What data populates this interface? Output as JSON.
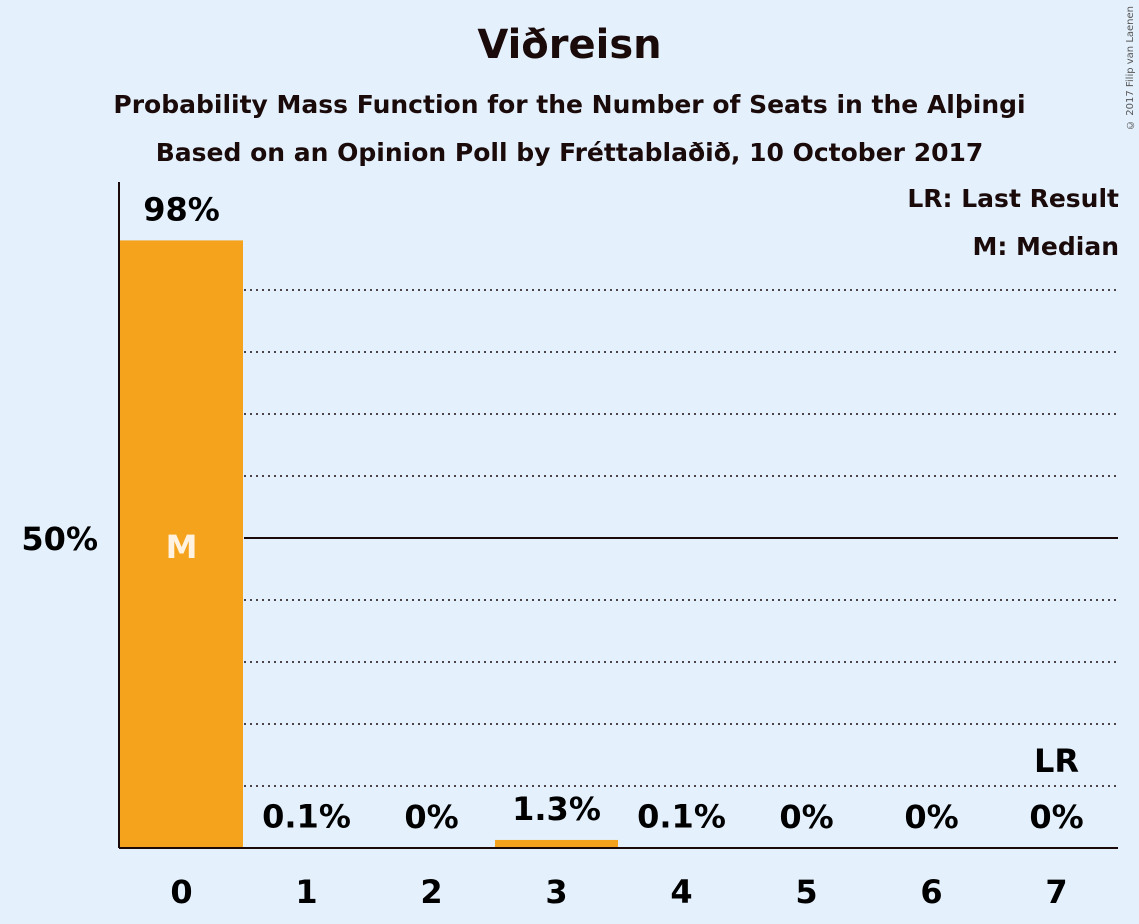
{
  "chart_data": {
    "type": "bar",
    "title": "Viðreisn",
    "subtitle": "Probability Mass Function for the Number of Seats in the Alþingi",
    "subtitle2": "Based on an Opinion Poll by Fréttablaðið, 10 October 2017",
    "copyright": "© 2017 Filip van Laenen",
    "categories": [
      "0",
      "1",
      "2",
      "3",
      "4",
      "5",
      "6",
      "7"
    ],
    "values": [
      98,
      0.1,
      0,
      1.3,
      0.1,
      0,
      0,
      0
    ],
    "value_labels": [
      "98%",
      "0.1%",
      "0%",
      "1.3%",
      "0.1%",
      "0%",
      "0%",
      "0%"
    ],
    "ylim": [
      0,
      100
    ],
    "y_tick_label": "50%",
    "y_tick_value": 50,
    "gridlines": [
      10,
      20,
      30,
      40,
      60,
      70,
      80,
      90
    ],
    "median_category": "0",
    "median_marker": "M",
    "last_result_category": "7",
    "last_result_marker": "LR",
    "legend": [
      "LR: Last Result",
      "M: Median"
    ],
    "bar_color": "#f5a31d",
    "background_color": "#e4f1fd"
  }
}
